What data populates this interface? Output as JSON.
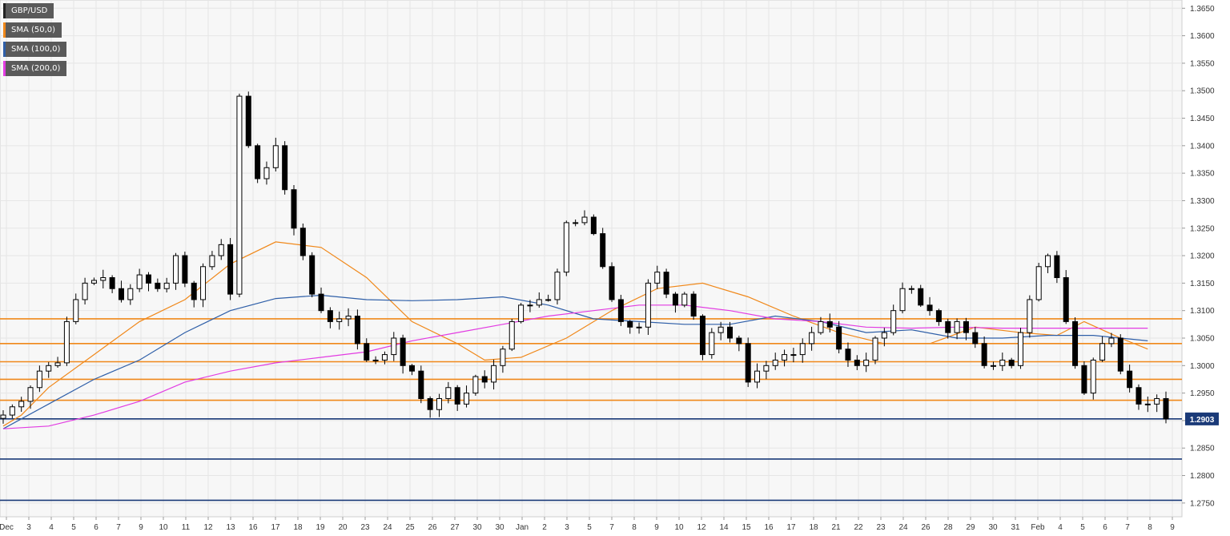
{
  "legend": [
    {
      "label": "GBP/USD",
      "color": "#222222"
    },
    {
      "label": "SMA (50,0)",
      "color": "#f0881a"
    },
    {
      "label": "SMA (100,0)",
      "color": "#2f5fa8"
    },
    {
      "label": "SMA (200,0)",
      "color": "#e23ce2"
    }
  ],
  "chart_data": {
    "type": "candlestick",
    "symbol": "GBP/USD",
    "ylim": [
      1.2725,
      1.3665
    ],
    "y_ticks": [
      "1.3650",
      "1.3600",
      "1.3550",
      "1.3500",
      "1.3450",
      "1.3400",
      "1.3350",
      "1.3300",
      "1.3250",
      "1.3200",
      "1.3150",
      "1.3100",
      "1.3050",
      "1.3000",
      "1.2950",
      "1.2900",
      "1.2850",
      "1.2800",
      "1.2750"
    ],
    "x_ticks": [
      "Dec",
      "3",
      "4",
      "5",
      "6",
      "7",
      "9",
      "10",
      "11",
      "12",
      "13",
      "16",
      "17",
      "18",
      "19",
      "20",
      "23",
      "24",
      "25",
      "26",
      "27",
      "30",
      "30",
      "Jan",
      "2",
      "3",
      "5",
      "7",
      "8",
      "9",
      "10",
      "12",
      "14",
      "15",
      "16",
      "17",
      "18",
      "21",
      "22",
      "23",
      "24",
      "26",
      "28",
      "29",
      "30",
      "31",
      "Feb",
      "4",
      "5",
      "6",
      "7",
      "8",
      "9"
    ],
    "last_price": "1.2903",
    "horizontal_levels": [
      {
        "value": 1.3085,
        "color": "#f0881a"
      },
      {
        "value": 1.304,
        "color": "#f0881a"
      },
      {
        "value": 1.3007,
        "color": "#f0881a"
      },
      {
        "value": 1.2975,
        "color": "#f0881a"
      },
      {
        "value": 1.2937,
        "color": "#f0881a"
      },
      {
        "value": 1.2903,
        "color": "#1a3a78"
      },
      {
        "value": 1.283,
        "color": "#1a3a78"
      },
      {
        "value": 1.2755,
        "color": "#1a3a78"
      }
    ],
    "price_path": [
      1.291,
      1.2925,
      1.2935,
      1.296,
      1.299,
      1.3,
      1.3005,
      1.308,
      1.312,
      1.315,
      1.3155,
      1.316,
      1.314,
      1.312,
      1.314,
      1.3165,
      1.315,
      1.314,
      1.315,
      1.32,
      1.315,
      1.312,
      1.318,
      1.32,
      1.322,
      1.313,
      1.349,
      1.34,
      1.334,
      1.336,
      1.34,
      1.332,
      1.325,
      1.32,
      1.313,
      1.31,
      1.308,
      1.3085,
      1.309,
      1.304,
      1.301,
      1.301,
      1.302,
      1.305,
      1.3,
      1.299,
      1.294,
      1.292,
      1.294,
      1.296,
      1.293,
      1.295,
      1.298,
      1.297,
      1.3,
      1.303,
      1.308,
      1.311,
      1.311,
      1.312,
      1.312,
      1.317,
      1.326,
      1.326,
      1.327,
      1.324,
      1.318,
      1.312,
      1.308,
      1.307,
      1.307,
      1.315,
      1.317,
      1.313,
      1.311,
      1.313,
      1.309,
      1.302,
      1.306,
      1.307,
      1.305,
      1.304,
      1.297,
      1.299,
      1.3,
      1.301,
      1.302,
      1.302,
      1.304,
      1.306,
      1.308,
      1.307,
      1.303,
      1.301,
      1.3,
      1.301,
      1.305,
      1.306,
      1.31,
      1.314,
      1.314,
      1.311,
      1.31,
      1.308,
      1.306,
      1.308,
      1.306,
      1.304,
      1.3,
      1.3,
      1.301,
      1.3,
      1.306,
      1.312,
      1.318,
      1.32,
      1.316,
      1.308,
      1.3,
      1.295,
      1.301,
      1.304,
      1.305,
      1.299,
      1.296,
      1.293,
      1.293,
      1.294,
      1.2903
    ],
    "sma_50": [
      [
        0,
        1.289
      ],
      [
        2,
        1.291
      ],
      [
        5,
        1.296
      ],
      [
        10,
        1.302
      ],
      [
        15,
        1.308
      ],
      [
        20,
        1.312
      ],
      [
        25,
        1.3185
      ],
      [
        30,
        1.3225
      ],
      [
        35,
        1.3215
      ],
      [
        40,
        1.316
      ],
      [
        45,
        1.308
      ],
      [
        50,
        1.304
      ],
      [
        53,
        1.301
      ],
      [
        57,
        1.3015
      ],
      [
        62,
        1.305
      ],
      [
        67,
        1.31
      ],
      [
        72,
        1.314
      ],
      [
        77,
        1.315
      ],
      [
        82,
        1.3125
      ],
      [
        87,
        1.309
      ],
      [
        92,
        1.306
      ],
      [
        97,
        1.304
      ],
      [
        102,
        1.304
      ],
      [
        107,
        1.307
      ],
      [
        112,
        1.306
      ],
      [
        116,
        1.3055
      ],
      [
        119,
        1.308
      ],
      [
        123,
        1.305
      ],
      [
        126,
        1.303
      ]
    ],
    "sma_100": [
      [
        0,
        1.2885
      ],
      [
        5,
        1.293
      ],
      [
        10,
        1.2975
      ],
      [
        15,
        1.301
      ],
      [
        20,
        1.306
      ],
      [
        25,
        1.31
      ],
      [
        30,
        1.3122
      ],
      [
        35,
        1.3128
      ],
      [
        40,
        1.312
      ],
      [
        45,
        1.3118
      ],
      [
        50,
        1.312
      ],
      [
        55,
        1.3125
      ],
      [
        60,
        1.311
      ],
      [
        65,
        1.3085
      ],
      [
        70,
        1.308
      ],
      [
        75,
        1.3075
      ],
      [
        80,
        1.3075
      ],
      [
        85,
        1.309
      ],
      [
        90,
        1.308
      ],
      [
        95,
        1.306
      ],
      [
        100,
        1.3065
      ],
      [
        105,
        1.305
      ],
      [
        110,
        1.305
      ],
      [
        115,
        1.3055
      ],
      [
        120,
        1.3055
      ],
      [
        126,
        1.3045
      ]
    ],
    "sma_200": [
      [
        0,
        1.2885
      ],
      [
        5,
        1.289
      ],
      [
        10,
        1.291
      ],
      [
        15,
        1.2935
      ],
      [
        20,
        1.297
      ],
      [
        25,
        1.299
      ],
      [
        30,
        1.3005
      ],
      [
        35,
        1.3015
      ],
      [
        40,
        1.3025
      ],
      [
        45,
        1.3045
      ],
      [
        50,
        1.306
      ],
      [
        55,
        1.3075
      ],
      [
        60,
        1.309
      ],
      [
        65,
        1.31
      ],
      [
        70,
        1.311
      ],
      [
        75,
        1.311
      ],
      [
        80,
        1.31
      ],
      [
        85,
        1.3085
      ],
      [
        90,
        1.308
      ],
      [
        95,
        1.307
      ],
      [
        100,
        1.3068
      ],
      [
        105,
        1.307
      ],
      [
        110,
        1.3068
      ],
      [
        115,
        1.3068
      ],
      [
        120,
        1.3068
      ],
      [
        126,
        1.3068
      ]
    ],
    "grid": true,
    "colors": {
      "bull": "#ffffff",
      "bear": "#000000",
      "wick": "#000000",
      "grid": "#e6e6e6",
      "axis_text": "#333333",
      "tag_bg": "#1a3a78"
    }
  }
}
